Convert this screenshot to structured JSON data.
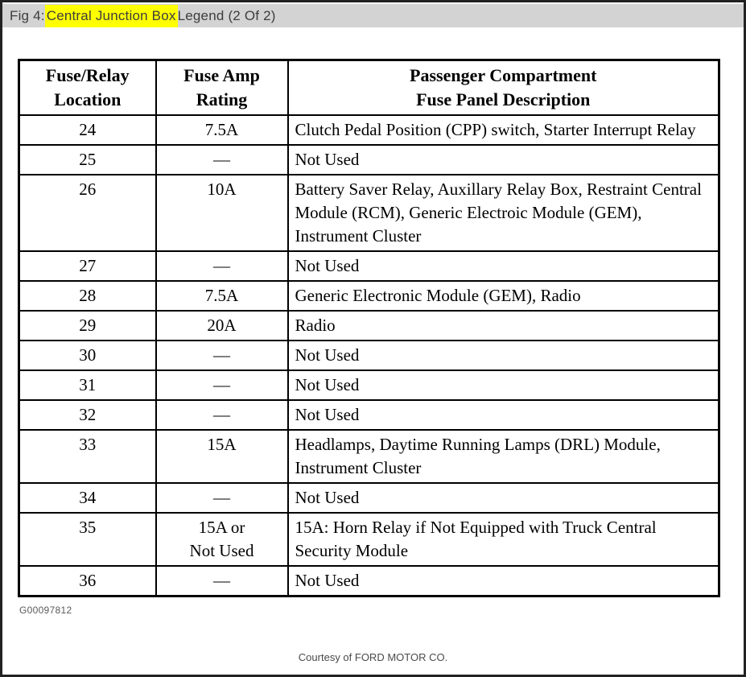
{
  "header": {
    "title_prefix": "Fig 4: ",
    "title_highlight": "Central Junction Box",
    "title_suffix": " Legend (2 Of 2)"
  },
  "table": {
    "columns": [
      "Fuse/Relay\nLocation",
      "Fuse Amp\nRating",
      "Passenger Compartment\nFuse Panel Description"
    ],
    "rows": [
      {
        "location": "24",
        "rating": "7.5A",
        "description": "Clutch Pedal Position (CPP) switch, Starter Interrupt Relay"
      },
      {
        "location": "25",
        "rating": "—",
        "description": "Not Used"
      },
      {
        "location": "26",
        "rating": "10A",
        "description": "Battery Saver Relay, Auxillary Relay Box, Restraint Central Module (RCM), Generic Electroic Module (GEM), Instrument Cluster"
      },
      {
        "location": "27",
        "rating": "—",
        "description": "Not Used"
      },
      {
        "location": "28",
        "rating": "7.5A",
        "description": "Generic Electronic Module (GEM), Radio"
      },
      {
        "location": "29",
        "rating": "20A",
        "description": "Radio"
      },
      {
        "location": "30",
        "rating": "—",
        "description": "Not Used"
      },
      {
        "location": "31",
        "rating": "—",
        "description": "Not Used"
      },
      {
        "location": "32",
        "rating": "—",
        "description": "Not Used"
      },
      {
        "location": "33",
        "rating": "15A",
        "description": "Headlamps, Daytime Running Lamps (DRL) Module, Instrument Cluster"
      },
      {
        "location": "34",
        "rating": "—",
        "description": "Not Used"
      },
      {
        "location": "35",
        "rating": "15A or\nNot Used",
        "description": "15A: Horn Relay if Not Equipped with Truck Central Security Module"
      },
      {
        "location": "36",
        "rating": "—",
        "description": "Not Used"
      }
    ]
  },
  "footer": {
    "figure_code": "G00097812",
    "courtesy": "Courtesy of FORD MOTOR CO."
  },
  "colors": {
    "title_bar_bg": "#d3d3d3",
    "highlight": "#ffff00",
    "frame_border": "#222222",
    "table_border": "#000000",
    "muted_text": "#5a5a5a"
  }
}
